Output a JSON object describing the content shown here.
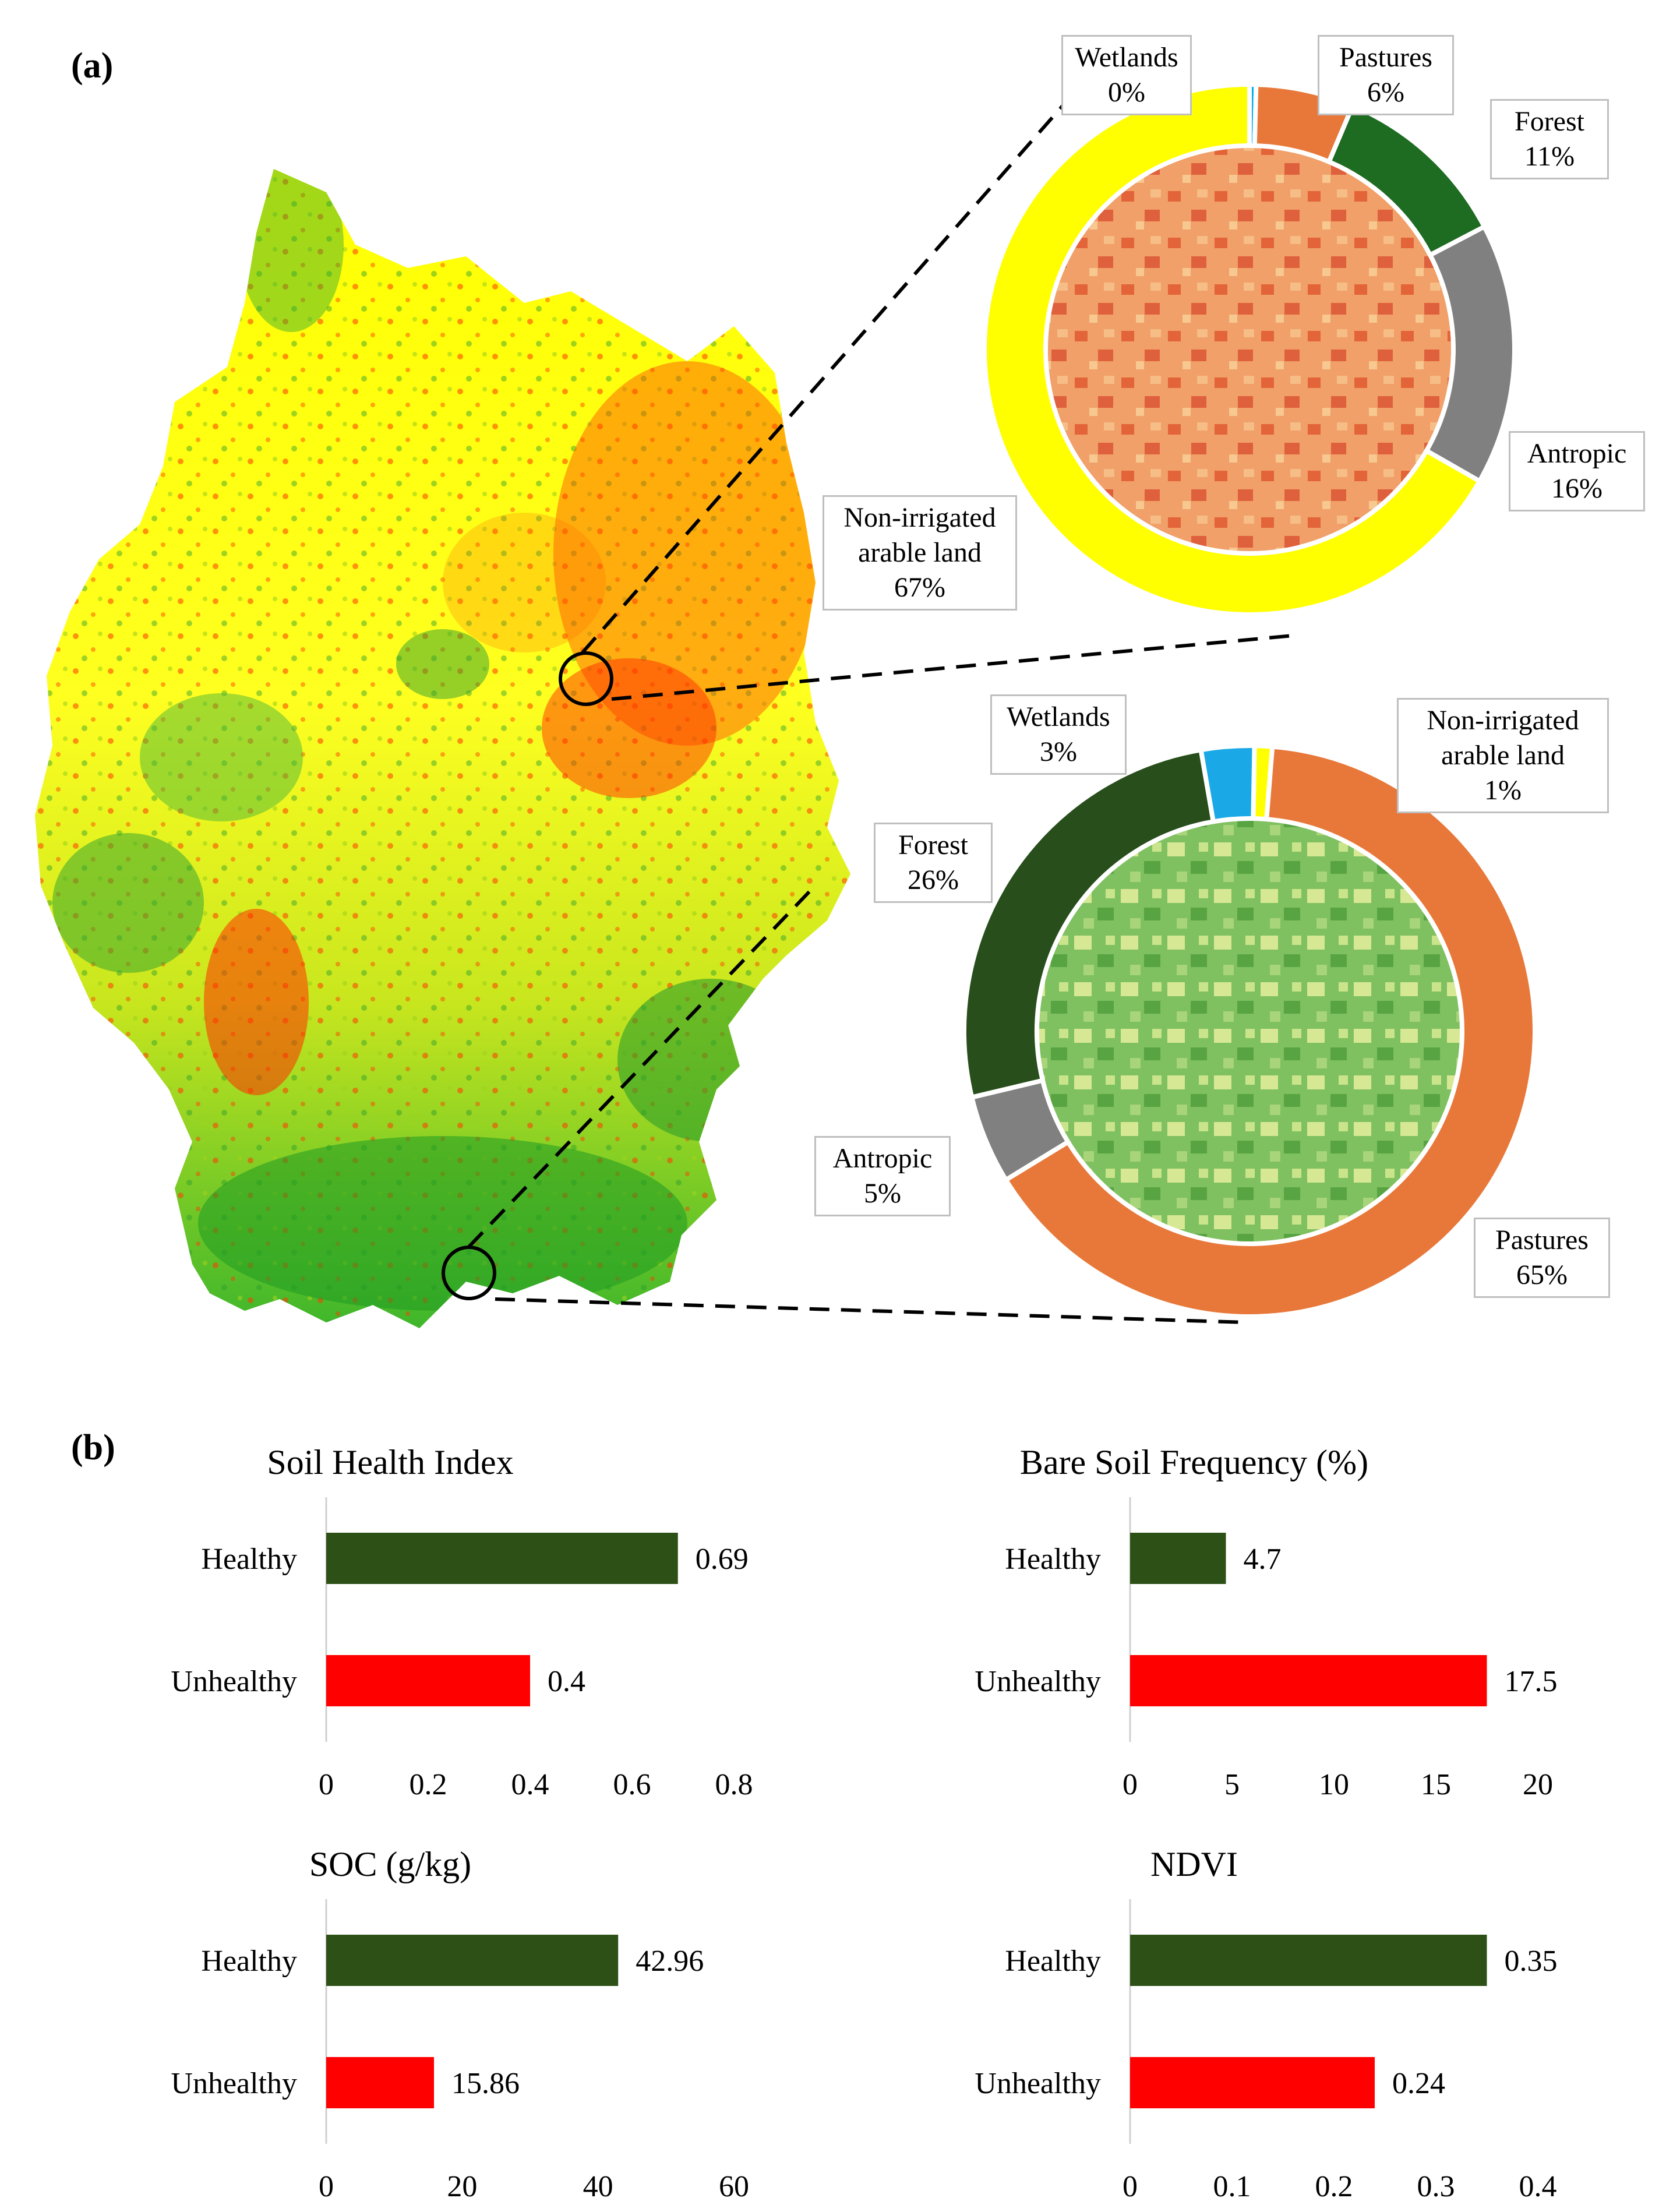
{
  "panel_a_label": "(a)",
  "panel_b_label": "(b)",
  "map_legend": {
    "low_color": "#ff2a00",
    "mid_color": "#ffff00",
    "high_color": "#1aa01a"
  },
  "chart_data": [
    {
      "type": "pie",
      "subtype": "donut",
      "title": "",
      "slices": [
        {
          "label": "Wetlands",
          "value": 0,
          "pct_label": "0%",
          "color": "#00b0f0"
        },
        {
          "label": "Pastures",
          "value": 6,
          "pct_label": "6%",
          "color": "#e8783a"
        },
        {
          "label": "Forest",
          "value": 11,
          "pct_label": "11%",
          "color": "#1e6b22"
        },
        {
          "label": "Antropic",
          "value": 16,
          "pct_label": "16%",
          "color": "#808080"
        },
        {
          "label": "Non-irrigated arable land",
          "value": 67,
          "pct_label": "67%",
          "color": "#ffff00"
        }
      ]
    },
    {
      "type": "pie",
      "subtype": "donut",
      "title": "",
      "slices": [
        {
          "label": "Non-irrigated arable land",
          "value": 1,
          "pct_label": "1%",
          "color": "#ffff00"
        },
        {
          "label": "Pastures",
          "value": 65,
          "pct_label": "65%",
          "color": "#e8783a"
        },
        {
          "label": "Antropic",
          "value": 5,
          "pct_label": "5%",
          "color": "#808080"
        },
        {
          "label": "Forest",
          "value": 26,
          "pct_label": "26%",
          "color": "#274e1b"
        },
        {
          "label": "Wetlands",
          "value": 3,
          "pct_label": "3%",
          "color": "#1aa9e6"
        }
      ]
    },
    {
      "type": "bar",
      "orientation": "horizontal",
      "title": "Soil Health Index",
      "categories": [
        "Healthy",
        "Unhealthy"
      ],
      "values": [
        0.69,
        0.4
      ],
      "value_labels": [
        "0.69",
        "0.4"
      ],
      "colors": [
        "#2d5016",
        "#ff0000"
      ],
      "xlim": [
        0,
        0.8
      ],
      "ticks": [
        "0",
        "0.2",
        "0.4",
        "0.6",
        "0.8"
      ]
    },
    {
      "type": "bar",
      "orientation": "horizontal",
      "title": "Bare Soil Frequency (%)",
      "categories": [
        "Healthy",
        "Unhealthy"
      ],
      "values": [
        4.7,
        17.5
      ],
      "value_labels": [
        "4.7",
        "17.5"
      ],
      "colors": [
        "#2d5016",
        "#ff0000"
      ],
      "xlim": [
        0,
        20
      ],
      "ticks": [
        "0",
        "5",
        "10",
        "15",
        "20"
      ]
    },
    {
      "type": "bar",
      "orientation": "horizontal",
      "title": "SOC (g/kg)",
      "categories": [
        "Healthy",
        "Unhealthy"
      ],
      "values": [
        42.96,
        15.86
      ],
      "value_labels": [
        "42.96",
        "15.86"
      ],
      "colors": [
        "#2d5016",
        "#ff0000"
      ],
      "xlim": [
        0,
        60
      ],
      "ticks": [
        "0",
        "20",
        "40",
        "60"
      ]
    },
    {
      "type": "bar",
      "orientation": "horizontal",
      "title": "NDVI",
      "categories": [
        "Healthy",
        "Unhealthy"
      ],
      "values": [
        0.35,
        0.24
      ],
      "value_labels": [
        "0.35",
        "0.24"
      ],
      "colors": [
        "#2d5016",
        "#ff0000"
      ],
      "xlim": [
        0,
        0.4
      ],
      "ticks": [
        "0",
        "0.1",
        "0.2",
        "0.3",
        "0.4"
      ]
    }
  ]
}
